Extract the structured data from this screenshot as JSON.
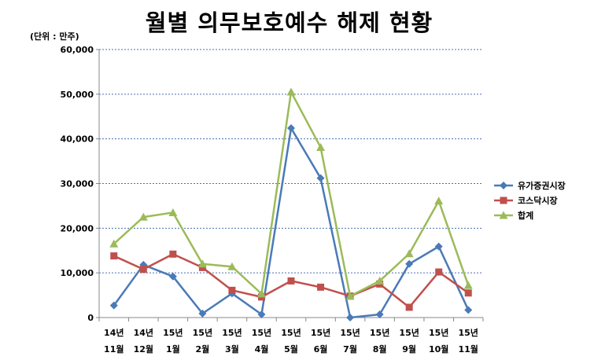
{
  "chart_data": {
    "type": "line",
    "title": "월별 의무보호예수 해제 현황",
    "unit_label": "(단위 : 만주)",
    "categories": [
      [
        "14년",
        "11월"
      ],
      [
        "14년",
        "12월"
      ],
      [
        "15년",
        "1월"
      ],
      [
        "15년",
        "2월"
      ],
      [
        "15년",
        "3월"
      ],
      [
        "15년",
        "4월"
      ],
      [
        "15년",
        "5월"
      ],
      [
        "15년",
        "6월"
      ],
      [
        "15년",
        "7월"
      ],
      [
        "15년",
        "8월"
      ],
      [
        "15년",
        "9월"
      ],
      [
        "15년",
        "10월"
      ],
      [
        "15년",
        "11월"
      ]
    ],
    "y_ticks": [
      "0",
      "10,000",
      "20,000",
      "30,000",
      "40,000",
      "50,000",
      "60,000"
    ],
    "ylim": [
      0,
      60000
    ],
    "grid": true,
    "legend_position": "right",
    "series": [
      {
        "name": "유가증권시장",
        "color": "#4a7ab7",
        "marker": "diamond",
        "values": [
          2700,
          11800,
          9200,
          900,
          5400,
          700,
          42400,
          31200,
          0,
          700,
          12000,
          15900,
          1700
        ]
      },
      {
        "name": "코스닥시장",
        "color": "#c0504d",
        "marker": "square",
        "values": [
          13800,
          10800,
          14200,
          11200,
          6100,
          4600,
          8200,
          6800,
          4800,
          7500,
          2300,
          10200,
          5500
        ]
      },
      {
        "name": "합계",
        "color": "#9bbb59",
        "marker": "triangle",
        "values": [
          16500,
          22500,
          23500,
          12000,
          11400,
          5300,
          50500,
          38100,
          4800,
          8200,
          14300,
          26100,
          7200
        ]
      }
    ]
  }
}
